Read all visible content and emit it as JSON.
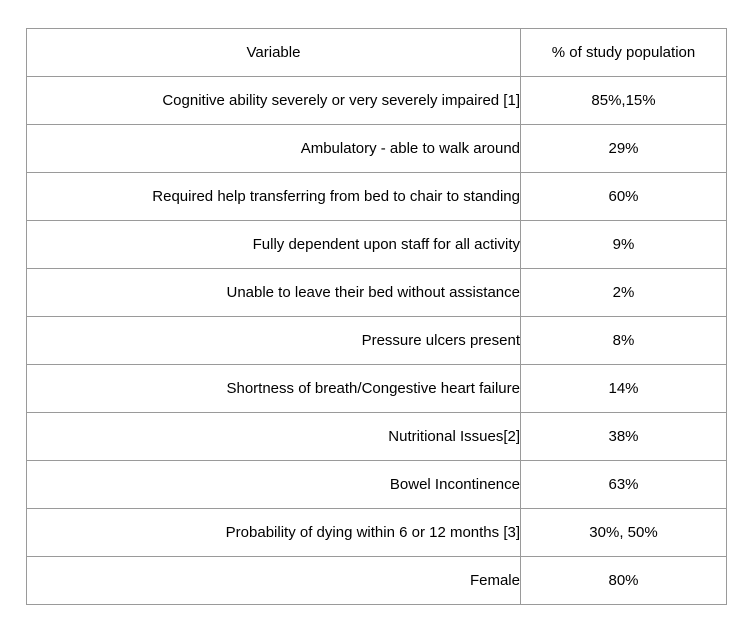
{
  "page": {
    "background_color": "#ffffff",
    "table_border_color": "#9a9a9a",
    "text_color": "#000000"
  },
  "table": {
    "headers": {
      "variable": "Variable",
      "value": "% of study population"
    },
    "rows": [
      {
        "variable": "Cognitive ability severely or very severely impaired [1]",
        "value": "85%,15%"
      },
      {
        "variable": "Ambulatory - able to walk around",
        "value": "29%"
      },
      {
        "variable": "Required help transferring from bed to chair to standing",
        "value": "60%"
      },
      {
        "variable": "Fully dependent upon staff for all activity",
        "value": "9%"
      },
      {
        "variable": "Unable to leave their bed without assistance",
        "value": "2%"
      },
      {
        "variable": "Pressure ulcers present",
        "value": "8%"
      },
      {
        "variable": "Shortness of breath/Congestive heart failure",
        "value": "14%"
      },
      {
        "variable": "Nutritional Issues[2]",
        "value": "38%"
      },
      {
        "variable": "Bowel Incontinence",
        "value": "63%"
      },
      {
        "variable": "Probability of dying within 6 or 12 months [3]",
        "value": "30%, 50%"
      },
      {
        "variable": "Female",
        "value": "80%"
      }
    ]
  }
}
